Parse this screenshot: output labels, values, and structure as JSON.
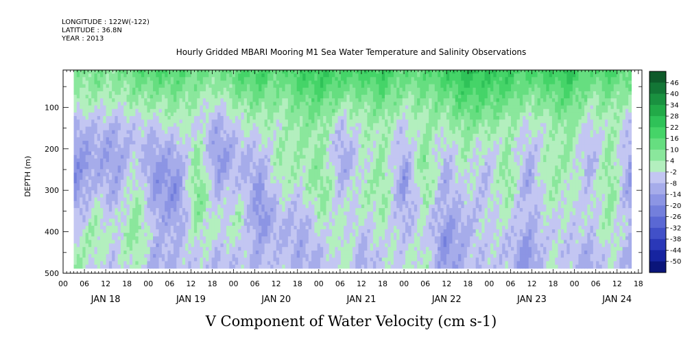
{
  "header": {
    "longitude": "LONGITUDE : 122W(-122)",
    "latitude": "LATITUDE : 36.8N",
    "year": "YEAR : 2013"
  },
  "chart_data": {
    "type": "heatmap",
    "title": "Hourly Gridded MBARI Mooring M1 Sea Water Temperature and Salinity Observations",
    "xlabel": "V Component of Water Velocity (cm s-1)",
    "ylabel": "DEPTH (m)",
    "x_unit": "hours",
    "xlim": [
      0,
      163
    ],
    "data_x_range": [
      3,
      160
    ],
    "ylim": [
      500,
      10
    ],
    "yticks": [
      100,
      200,
      300,
      400,
      500
    ],
    "hour_ticks": [
      "00",
      "06",
      "12",
      "18",
      "00",
      "06",
      "12",
      "18",
      "00",
      "06",
      "12",
      "18",
      "00",
      "06",
      "12",
      "18",
      "00",
      "06",
      "12",
      "18",
      "00",
      "06",
      "12",
      "18",
      "00",
      "06",
      "12",
      "18"
    ],
    "day_labels": [
      "JAN 18",
      "JAN 19",
      "JAN 20",
      "JAN 21",
      "JAN 22",
      "JAN 23",
      "JAN 24"
    ],
    "colorbar": {
      "levels": [
        48,
        46,
        40,
        34,
        28,
        22,
        16,
        10,
        4,
        -2,
        -8,
        -14,
        -20,
        -26,
        -32,
        -38,
        -44,
        -50
      ],
      "labels": [
        "46",
        "40",
        "34",
        "28",
        "22",
        "16",
        "10",
        "4",
        "-2",
        "-8",
        "-14",
        "-20",
        "-26",
        "-32",
        "-38",
        "-44",
        "-50"
      ],
      "colors": [
        "#0e5a2a",
        "#137636",
        "#1a9140",
        "#22aa48",
        "#2fc258",
        "#45d468",
        "#66de80",
        "#8ae79c",
        "#b3efbe",
        "#c3c6f2",
        "#a6acea",
        "#8c95e4",
        "#737fdc",
        "#5a68d4",
        "#4150c8",
        "#2a38b8",
        "#1624a0",
        "#0a157a"
      ]
    },
    "values": [
      [
        6,
        4,
        2,
        -8,
        -14,
        -18,
        -20,
        -16,
        -10,
        -4,
        2,
        6
      ],
      [
        10,
        6,
        0,
        -6,
        -10,
        -12,
        -8,
        -4,
        0,
        4,
        2,
        -4
      ],
      [
        8,
        4,
        -2,
        -8,
        -12,
        -14,
        -12,
        -10,
        -6,
        -2,
        -4,
        -8
      ],
      [
        14,
        8,
        2,
        -4,
        -6,
        -4,
        0,
        4,
        6,
        8,
        4,
        2
      ],
      [
        18,
        10,
        4,
        -4,
        -10,
        -14,
        -16,
        -14,
        -10,
        -8,
        -10,
        -12
      ],
      [
        16,
        10,
        6,
        0,
        -6,
        -12,
        -16,
        -18,
        -14,
        -10,
        -8,
        -6
      ],
      [
        12,
        6,
        2,
        -2,
        2,
        6,
        8,
        10,
        6,
        2,
        -2,
        -4
      ],
      [
        10,
        4,
        -4,
        -10,
        -14,
        -16,
        -12,
        -8,
        -4,
        -2,
        -6,
        -10
      ],
      [
        16,
        10,
        4,
        -2,
        -6,
        -8,
        -6,
        -2,
        2,
        0,
        -4,
        -6
      ],
      [
        20,
        14,
        8,
        2,
        -4,
        -10,
        -14,
        -16,
        -18,
        -14,
        -10,
        -8
      ],
      [
        14,
        8,
        4,
        0,
        2,
        4,
        2,
        -2,
        -6,
        -8,
        -6,
        -4
      ],
      [
        20,
        16,
        10,
        6,
        4,
        2,
        0,
        -4,
        -8,
        -10,
        -12,
        -10
      ],
      [
        22,
        18,
        12,
        6,
        4,
        6,
        8,
        6,
        2,
        -2,
        -6,
        -8
      ],
      [
        18,
        12,
        4,
        -6,
        -10,
        -12,
        -10,
        -6,
        -2,
        0,
        2,
        0
      ],
      [
        20,
        12,
        6,
        2,
        0,
        -2,
        0,
        2,
        -2,
        -6,
        -10,
        -12
      ],
      [
        22,
        16,
        10,
        4,
        2,
        4,
        6,
        4,
        2,
        0,
        -2,
        -4
      ],
      [
        12,
        8,
        2,
        -4,
        -8,
        -12,
        -16,
        -14,
        -10,
        -6,
        -4,
        -2
      ],
      [
        16,
        10,
        6,
        4,
        6,
        8,
        6,
        4,
        0,
        -2,
        0,
        2
      ],
      [
        20,
        14,
        8,
        2,
        -4,
        -8,
        -10,
        -10,
        -12,
        -16,
        -18,
        -16
      ],
      [
        26,
        20,
        14,
        8,
        4,
        2,
        0,
        -4,
        -8,
        -10,
        -8,
        -6
      ],
      [
        24,
        18,
        12,
        6,
        -2,
        -6,
        -8,
        -6,
        -4,
        -2,
        -4,
        -6
      ],
      [
        22,
        16,
        10,
        4,
        2,
        6,
        8,
        4,
        0,
        -4,
        -6,
        -4
      ],
      [
        16,
        10,
        4,
        -2,
        -6,
        -10,
        -12,
        -10,
        -8,
        -12,
        -16,
        -18
      ],
      [
        20,
        14,
        8,
        2,
        0,
        2,
        4,
        2,
        -2,
        -4,
        -2,
        0
      ],
      [
        24,
        18,
        12,
        8,
        6,
        4,
        2,
        0,
        -2,
        -4,
        -6,
        -4
      ],
      [
        14,
        8,
        2,
        -4,
        -8,
        -10,
        -8,
        -6,
        -4,
        -6,
        -10,
        -12
      ],
      [
        18,
        12,
        6,
        2,
        4,
        6,
        8,
        6,
        4,
        2,
        0,
        -2
      ],
      [
        12,
        6,
        0,
        -6,
        -10,
        -14,
        -16,
        -14,
        -10,
        -8,
        -10,
        -12
      ]
    ]
  }
}
